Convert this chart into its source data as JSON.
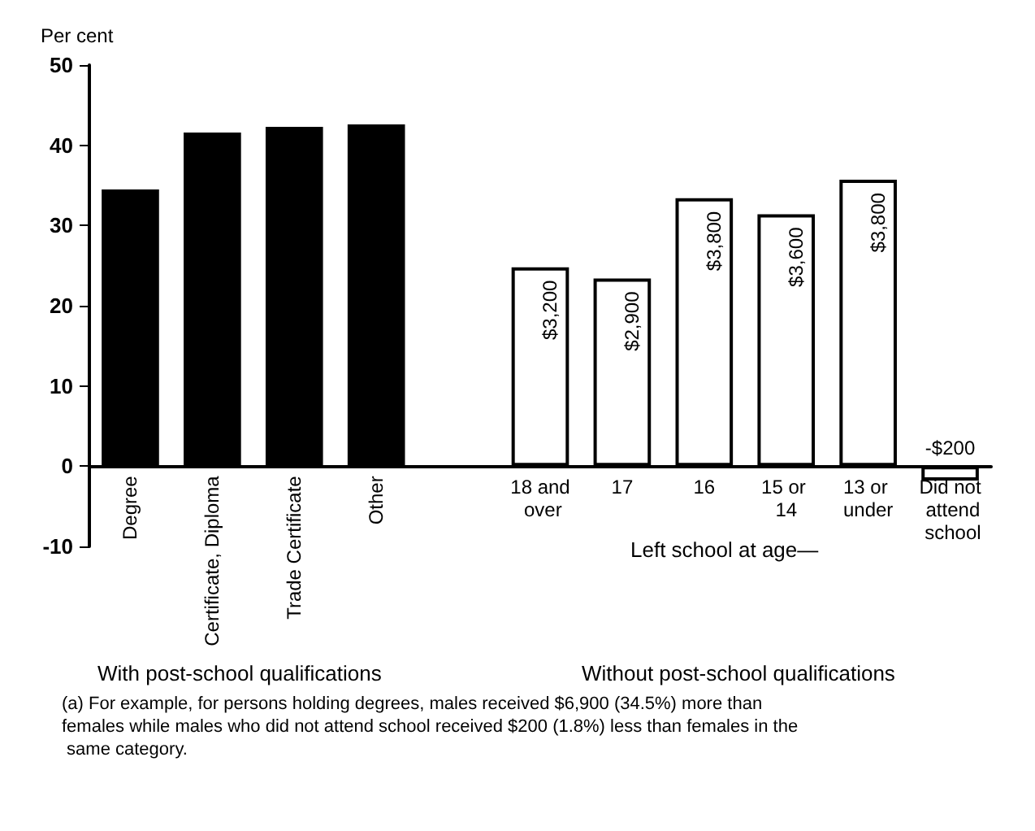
{
  "chart_data": {
    "type": "bar",
    "ylabel": "Per cent",
    "categories": [
      "Degree",
      "Certificate, Diploma",
      "Trade Certificate",
      "Other",
      null,
      "18 and over",
      "17",
      "16",
      "15 or 14",
      "13 or under",
      "Did not attend school"
    ],
    "values": [
      34.5,
      41.6,
      42.3,
      42.6,
      null,
      24.8,
      23.4,
      33.4,
      31.4,
      35.7,
      -1.8
    ],
    "colors": [
      "#000000",
      "#000000",
      "#000000",
      "#000000",
      null,
      "#ffffff",
      "#ffffff",
      "#ffffff",
      "#ffffff",
      "#ffffff",
      "#ffffff"
    ],
    "ylim": [
      -10,
      50
    ],
    "yticks": [
      -10,
      0,
      10,
      20,
      30,
      40,
      50
    ],
    "annotations": [
      {
        "text": "$3,200",
        "x": "18 and over",
        "y": 24.8
      },
      {
        "text": "$2,900",
        "x": "17",
        "y": 23.4
      },
      {
        "text": "$3,800",
        "x": "16",
        "y": 33.4
      },
      {
        "text": "$3,600",
        "x": "15 or 14",
        "y": 31.4
      },
      {
        "text": "$3,800",
        "x": "13 or under",
        "y": 35.7
      },
      {
        "text": "-$200",
        "x": "Did not attend school",
        "y": -1.8
      },
      "Left school at age—",
      "With post-school qualifications",
      "Without post-school qualifications",
      "(a) For example, for persons holding degrees, males received $6,900 (34.5%) more than females while males who did not attend school received $200 (1.8%) less than females in the same category."
    ]
  }
}
